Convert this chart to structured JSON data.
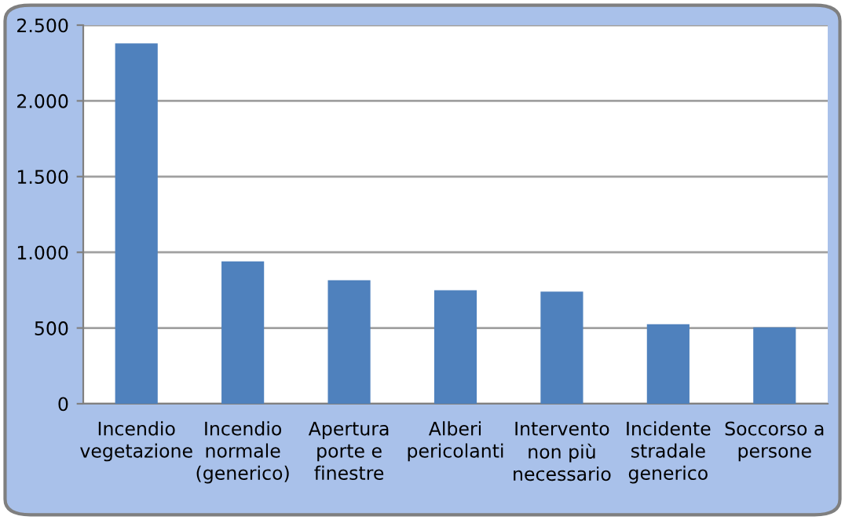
{
  "chart_data": {
    "type": "bar",
    "categories": [
      "Incendio\nvegetazione",
      "Incendio\nnormale\n(generico)",
      "Apertura\nporte e\nfinestre",
      "Alberi\npericolanti",
      "Intervento\nnon più\nnecessario",
      "Incidente\nstradale\ngenerico",
      "Soccorso a\npersone"
    ],
    "values": [
      2380,
      940,
      815,
      750,
      740,
      525,
      505
    ],
    "color": "#4f81bd",
    "ylim": [
      0,
      2500
    ],
    "yticks": [
      0,
      500,
      {
        "value": 1000,
        "label": "1.000"
      },
      {
        "value": 1500,
        "label": "1.500"
      },
      {
        "value": 2000,
        "label": "2.000"
      },
      {
        "value": 2500,
        "label": "2.500"
      }
    ],
    "grid": "y",
    "legend": false
  }
}
